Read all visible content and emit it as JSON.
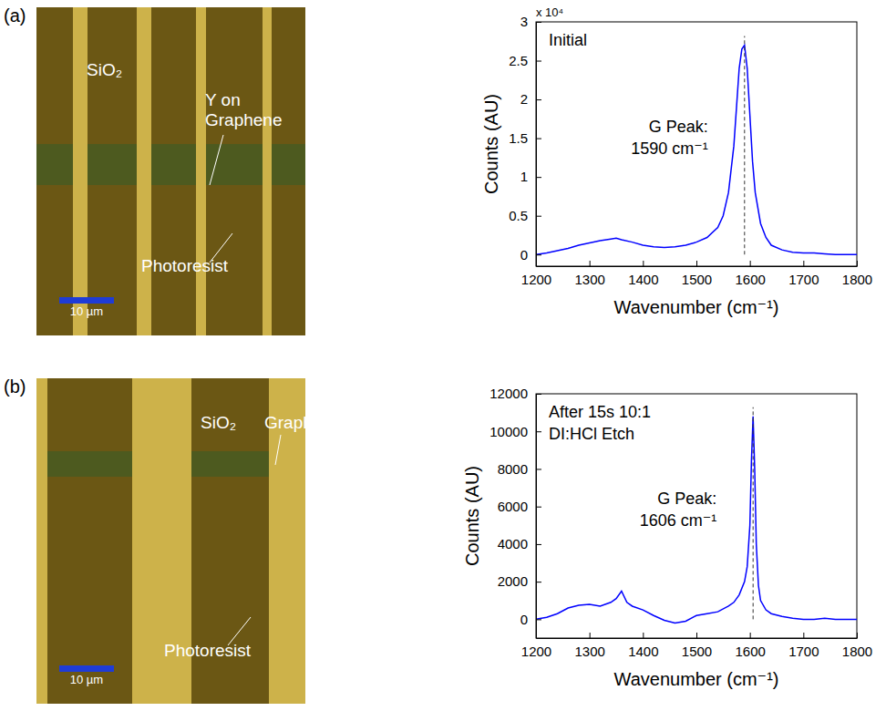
{
  "panels": [
    {
      "label": "(a)",
      "micrograph": {
        "labels": [
          {
            "lines": [
              "SiO₂"
            ]
          },
          {
            "lines": [
              "Y on",
              "Graphene"
            ]
          },
          {
            "lines": [
              "Photoresist"
            ]
          }
        ],
        "scale_bar": "10 µm"
      }
    },
    {
      "label": "(b)",
      "micrograph": {
        "labels": [
          {
            "lines": [
              "SiO₂"
            ]
          },
          {
            "lines": [
              "Graphene"
            ]
          },
          {
            "lines": [
              "Photoresist"
            ]
          }
        ],
        "scale_bar": "10 µm"
      }
    }
  ],
  "chart_data": [
    {
      "type": "line",
      "x_label": "Wavenumber (cm⁻¹)",
      "y_label": "Counts (AU)",
      "y_multiplier": "x 10⁴",
      "annotations": [
        {
          "lines": [
            "Initial"
          ]
        }
      ],
      "peak": {
        "x": 1590,
        "lines": [
          "G Peak:",
          "1590 cm⁻¹"
        ]
      },
      "x": [
        1200,
        1220,
        1240,
        1260,
        1280,
        1300,
        1320,
        1340,
        1350,
        1360,
        1380,
        1400,
        1420,
        1440,
        1460,
        1480,
        1500,
        1520,
        1540,
        1550,
        1560,
        1570,
        1575,
        1580,
        1585,
        1590,
        1595,
        1600,
        1605,
        1610,
        1620,
        1630,
        1640,
        1660,
        1680,
        1700,
        1720,
        1740,
        1760,
        1780,
        1800
      ],
      "series": [
        {
          "color": "#0000ff",
          "values": [
            0,
            0.02,
            0.05,
            0.08,
            0.12,
            0.15,
            0.18,
            0.2,
            0.21,
            0.19,
            0.16,
            0.12,
            0.1,
            0.09,
            0.1,
            0.12,
            0.16,
            0.22,
            0.35,
            0.5,
            0.8,
            1.4,
            1.9,
            2.4,
            2.65,
            2.7,
            2.4,
            1.8,
            1.2,
            0.8,
            0.4,
            0.22,
            0.12,
            0.06,
            0.03,
            0.02,
            0.02,
            0.01,
            0,
            0,
            0
          ]
        }
      ],
      "xlim": [
        1200,
        1800
      ],
      "xticks": [
        1200,
        1300,
        1400,
        1500,
        1600,
        1700,
        1800
      ],
      "ylim": [
        -0.15,
        3
      ],
      "yticks": [
        0,
        0.5,
        1,
        1.5,
        2,
        2.5,
        3
      ]
    },
    {
      "type": "line",
      "x_label": "Wavenumber (cm⁻¹)",
      "y_label": "Counts (AU)",
      "annotations": [
        {
          "lines": [
            "After 15s 10:1",
            "DI:HCl Etch"
          ]
        }
      ],
      "peak": {
        "x": 1606,
        "lines": [
          "G Peak:",
          "1606 cm⁻¹"
        ]
      },
      "x": [
        1200,
        1220,
        1240,
        1260,
        1280,
        1300,
        1320,
        1340,
        1350,
        1360,
        1370,
        1380,
        1400,
        1420,
        1440,
        1460,
        1480,
        1500,
        1520,
        1540,
        1560,
        1570,
        1580,
        1590,
        1595,
        1600,
        1603,
        1606,
        1609,
        1612,
        1616,
        1620,
        1630,
        1640,
        1660,
        1680,
        1700,
        1720,
        1740,
        1760,
        1780,
        1800
      ],
      "series": [
        {
          "color": "#0000ff",
          "values": [
            0,
            100,
            300,
            600,
            750,
            800,
            700,
            900,
            1100,
            1500,
            900,
            700,
            500,
            200,
            -50,
            -200,
            -100,
            200,
            300,
            400,
            700,
            900,
            1300,
            2000,
            2800,
            5000,
            8500,
            10800,
            8000,
            4000,
            1800,
            1000,
            500,
            300,
            150,
            50,
            0,
            0,
            50,
            0,
            0,
            0
          ]
        }
      ],
      "xlim": [
        1200,
        1800
      ],
      "xticks": [
        1200,
        1300,
        1400,
        1500,
        1600,
        1700,
        1800
      ],
      "ylim": [
        -1000,
        12000
      ],
      "yticks": [
        0,
        2000,
        4000,
        6000,
        8000,
        10000,
        12000
      ]
    }
  ]
}
